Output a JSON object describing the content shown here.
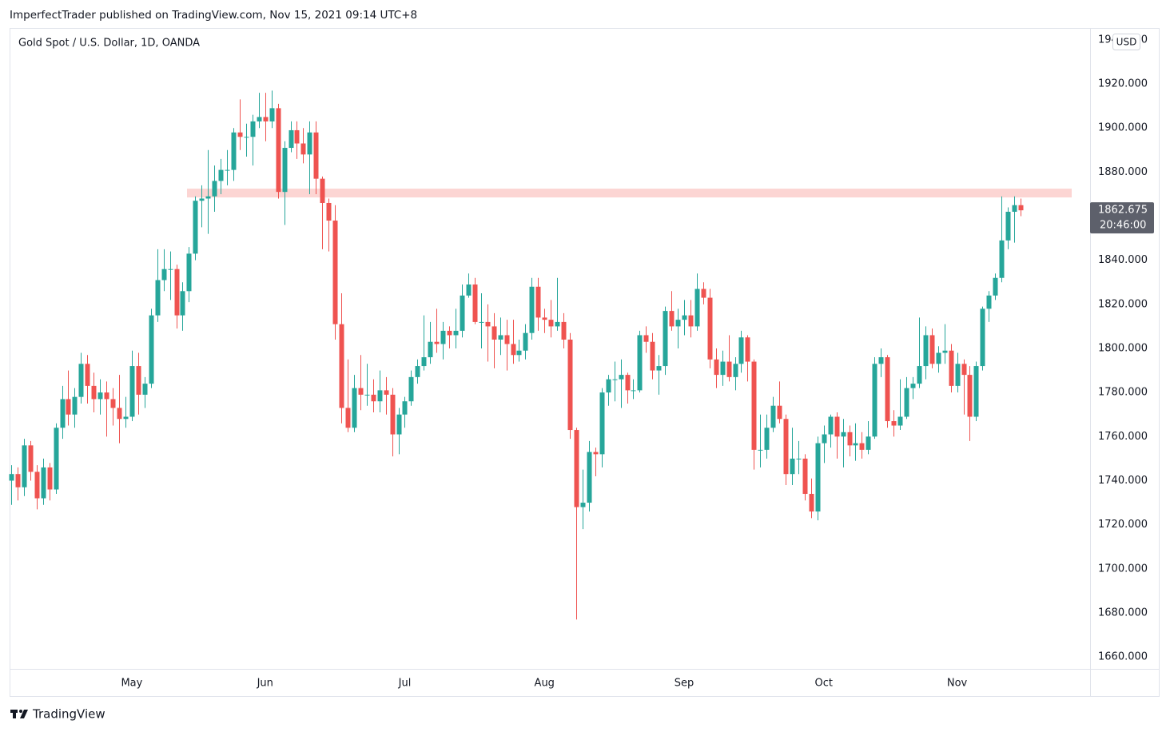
{
  "header": {
    "byline": "ImperfectTrader published on TradingView.com, Nov 15, 2021 09:14 UTC+8",
    "brand": "TradingView"
  },
  "chart_data": {
    "type": "candlestick",
    "title": "Gold Spot / U.S. Dollar, 1D, OANDA",
    "currency": "USD",
    "countdown": "20:46:00",
    "up_color": "#26a69a",
    "down_color": "#ef5350",
    "grid": false,
    "ylim": [
      1654.6,
      1945.4
    ],
    "yticks": [
      {
        "value": 1660,
        "label": "1660.000"
      },
      {
        "value": 1680,
        "label": "1680.000"
      },
      {
        "value": 1700,
        "label": "1700.000"
      },
      {
        "value": 1720,
        "label": "1720.000"
      },
      {
        "value": 1740,
        "label": "1740.000"
      },
      {
        "value": 1760,
        "label": "1760.000"
      },
      {
        "value": 1780,
        "label": "1780.000"
      },
      {
        "value": 1800,
        "label": "1800.000"
      },
      {
        "value": 1820,
        "label": "1820.000"
      },
      {
        "value": 1840,
        "label": "1840.000"
      },
      {
        "value": 1860,
        "label": "1860.000"
      },
      {
        "value": 1880,
        "label": "1880.000"
      },
      {
        "value": 1900,
        "label": "1900.000"
      },
      {
        "value": 1920,
        "label": "1920.000"
      },
      {
        "value": 1940,
        "label": "1940.000"
      }
    ],
    "resistance_zone": {
      "low": 1868.5,
      "high": 1872.5,
      "color": "#fcd5d3"
    },
    "categories": [
      null,
      null,
      null,
      null,
      null,
      null,
      null,
      null,
      null,
      null,
      null,
      null,
      null,
      null,
      null,
      null,
      null,
      null,
      null,
      "May",
      null,
      null,
      null,
      null,
      null,
      null,
      null,
      null,
      null,
      null,
      null,
      null,
      null,
      null,
      null,
      null,
      null,
      null,
      null,
      null,
      "Jun",
      null,
      null,
      null,
      null,
      null,
      null,
      null,
      null,
      null,
      null,
      null,
      null,
      null,
      null,
      null,
      null,
      null,
      null,
      null,
      null,
      null,
      "Jul",
      null,
      null,
      null,
      null,
      null,
      null,
      null,
      null,
      null,
      null,
      null,
      null,
      null,
      null,
      null,
      null,
      null,
      null,
      null,
      null,
      null,
      "Aug",
      null,
      null,
      null,
      null,
      null,
      null,
      null,
      null,
      null,
      null,
      null,
      null,
      null,
      null,
      null,
      null,
      null,
      null,
      null,
      null,
      null,
      "Sep",
      null,
      null,
      null,
      null,
      null,
      null,
      null,
      null,
      null,
      null,
      null,
      null,
      null,
      null,
      null,
      null,
      null,
      null,
      null,
      null,
      null,
      "Oct",
      null,
      null,
      null,
      null,
      null,
      null,
      null,
      null,
      null,
      null,
      null,
      null,
      null,
      null,
      null,
      null,
      null,
      null,
      null,
      null,
      "Nov",
      null,
      null,
      null,
      null,
      null,
      null,
      null,
      null,
      null,
      null
    ],
    "open": [
      1740,
      1743,
      1737,
      1756,
      1744,
      1732,
      1746,
      1736,
      1764,
      1777,
      1770,
      1778,
      1793,
      1783,
      1777,
      1780,
      1777,
      1773,
      1768,
      1769,
      1792,
      1779,
      1784,
      1815,
      1831,
      1836,
      1836,
      1815,
      1826,
      1843,
      1867,
      1868,
      1869,
      1876,
      1881,
      1881,
      1898,
      1896,
      1896,
      1903,
      1905,
      1903,
      1909,
      1871,
      1891,
      1899,
      1893,
      1888,
      1898,
      1877,
      1866,
      1858,
      1811,
      1773,
      1764,
      1782,
      1779,
      1779,
      1776,
      1781,
      1779,
      1761,
      1770,
      1776,
      1787,
      1792,
      1796,
      1803,
      1802,
      1808,
      1806,
      1808,
      1824,
      1829,
      1812,
      1812,
      1810,
      1804,
      1806,
      1802,
      1797,
      1799,
      1807,
      1828,
      1814,
      1813,
      1810,
      1812,
      1804,
      1763,
      1728,
      1730,
      1753,
      1752,
      1780,
      1786,
      1786,
      1788,
      1781,
      1781,
      1806,
      1803,
      1790,
      1792,
      1817,
      1810,
      1813,
      1815,
      1810,
      1827,
      1823,
      1795,
      1788,
      1794,
      1787,
      1793,
      1805,
      1794,
      1754,
      1754,
      1764,
      1774,
      1768,
      1743,
      1750,
      1750,
      1734,
      1726,
      1757,
      1761,
      1769,
      1760,
      1762,
      1756,
      1757,
      1754,
      1760,
      1793,
      1796,
      1767,
      1765,
      1769,
      1782,
      1784,
      1792,
      1806,
      1793,
      1798,
      1799,
      1783,
      1793,
      1788,
      1769,
      1792,
      1818,
      1824,
      1832,
      1849,
      1862,
      1865
    ],
    "high": [
      1747,
      1746,
      1759,
      1758,
      1747,
      1750,
      1748,
      1766,
      1783,
      1790,
      1782,
      1798,
      1797,
      1789,
      1786,
      1785,
      1782,
      1788,
      1778,
      1799,
      1798,
      1787,
      1818,
      1845,
      1845,
      1844,
      1838,
      1830,
      1846,
      1869,
      1874,
      1890,
      1883,
      1886,
      1890,
      1900,
      1913,
      1902,
      1906,
      1916,
      1916,
      1917,
      1911,
      1894,
      1903,
      1903,
      1900,
      1903,
      1903,
      1878,
      1868,
      1865,
      1825,
      1795,
      1788,
      1797,
      1793,
      1786,
      1790,
      1787,
      1782,
      1773,
      1778,
      1790,
      1795,
      1815,
      1812,
      1818,
      1812,
      1810,
      1818,
      1829,
      1834,
      1832,
      1825,
      1820,
      1816,
      1814,
      1813,
      1813,
      1804,
      1811,
      1832,
      1832,
      1818,
      1822,
      1832,
      1816,
      1807,
      1764,
      1745,
      1758,
      1755,
      1782,
      1788,
      1794,
      1795,
      1789,
      1786,
      1808,
      1810,
      1807,
      1797,
      1819,
      1826,
      1818,
      1822,
      1822,
      1834,
      1830,
      1827,
      1800,
      1799,
      1806,
      1796,
      1808,
      1806,
      1795,
      1770,
      1770,
      1778,
      1785,
      1770,
      1764,
      1758,
      1752,
      1741,
      1760,
      1765,
      1770,
      1771,
      1768,
      1765,
      1766,
      1762,
      1767,
      1796,
      1800,
      1797,
      1772,
      1786,
      1787,
      1787,
      1814,
      1810,
      1809,
      1801,
      1811,
      1802,
      1798,
      1795,
      1792,
      1794,
      1819,
      1826,
      1834,
      1869,
      1864,
      1869,
      1868
    ],
    "low": [
      1729,
      1731,
      1733,
      1740,
      1727,
      1729,
      1731,
      1734,
      1759,
      1765,
      1764,
      1775,
      1775,
      1771,
      1770,
      1760,
      1765,
      1757,
      1764,
      1767,
      1770,
      1773,
      1782,
      1812,
      1826,
      1822,
      1809,
      1808,
      1821,
      1840,
      1855,
      1852,
      1862,
      1870,
      1874,
      1876,
      1890,
      1887,
      1883,
      1900,
      1894,
      1900,
      1868,
      1856,
      1889,
      1886,
      1884,
      1870,
      1870,
      1845,
      1844,
      1804,
      1766,
      1762,
      1762,
      1772,
      1774,
      1771,
      1771,
      1770,
      1751,
      1752,
      1764,
      1774,
      1784,
      1790,
      1793,
      1798,
      1795,
      1800,
      1800,
      1805,
      1823,
      1811,
      1800,
      1794,
      1791,
      1797,
      1790,
      1793,
      1794,
      1795,
      1804,
      1808,
      1807,
      1805,
      1808,
      1800,
      1759,
      1677,
      1718,
      1726,
      1742,
      1746,
      1774,
      1776,
      1773,
      1775,
      1777,
      1780,
      1798,
      1786,
      1779,
      1788,
      1808,
      1800,
      1806,
      1805,
      1808,
      1820,
      1791,
      1782,
      1783,
      1785,
      1781,
      1789,
      1785,
      1745,
      1746,
      1750,
      1762,
      1766,
      1738,
      1738,
      1743,
      1731,
      1723,
      1722,
      1748,
      1755,
      1750,
      1746,
      1751,
      1749,
      1750,
      1752,
      1759,
      1787,
      1764,
      1760,
      1763,
      1768,
      1777,
      1782,
      1786,
      1791,
      1789,
      1793,
      1780,
      1780,
      1770,
      1758,
      1767,
      1790,
      1812,
      1822,
      1830,
      1845,
      1848,
      1860
    ],
    "close": [
      1743,
      1737,
      1756,
      1744,
      1732,
      1746,
      1736,
      1764,
      1777,
      1770,
      1778,
      1793,
      1783,
      1777,
      1780,
      1777,
      1773,
      1768,
      1769,
      1792,
      1779,
      1784,
      1815,
      1831,
      1836,
      1836,
      1815,
      1826,
      1843,
      1867,
      1868,
      1869,
      1876,
      1881,
      1881,
      1898,
      1896,
      1896,
      1903,
      1905,
      1903,
      1909,
      1871,
      1891,
      1899,
      1893,
      1888,
      1898,
      1877,
      1866,
      1858,
      1811,
      1773,
      1764,
      1782,
      1779,
      1779,
      1776,
      1781,
      1779,
      1761,
      1770,
      1776,
      1787,
      1792,
      1796,
      1803,
      1802,
      1808,
      1806,
      1808,
      1824,
      1829,
      1812,
      1812,
      1810,
      1804,
      1806,
      1802,
      1797,
      1799,
      1807,
      1828,
      1814,
      1813,
      1810,
      1812,
      1804,
      1763,
      1728,
      1730,
      1753,
      1752,
      1780,
      1786,
      1786,
      1788,
      1781,
      1781,
      1806,
      1803,
      1790,
      1792,
      1817,
      1810,
      1813,
      1815,
      1810,
      1827,
      1823,
      1795,
      1788,
      1794,
      1787,
      1793,
      1805,
      1794,
      1754,
      1754,
      1764,
      1774,
      1768,
      1743,
      1750,
      1750,
      1734,
      1726,
      1757,
      1761,
      1769,
      1760,
      1762,
      1756,
      1757,
      1754,
      1760,
      1793,
      1796,
      1767,
      1765,
      1769,
      1782,
      1784,
      1792,
      1806,
      1793,
      1798,
      1799,
      1783,
      1793,
      1788,
      1769,
      1792,
      1818,
      1824,
      1832,
      1849,
      1862,
      1865,
      1862.675
    ]
  }
}
